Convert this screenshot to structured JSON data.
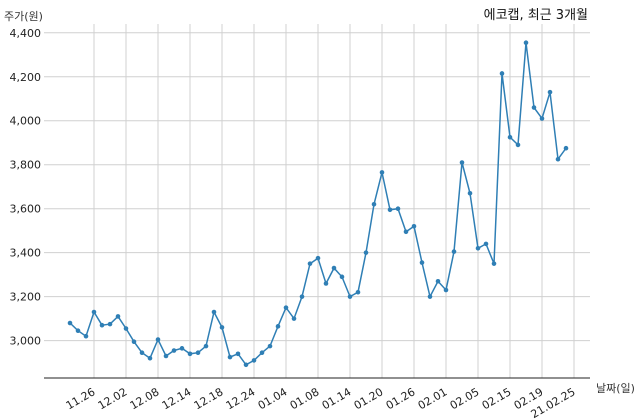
{
  "chart_data": {
    "type": "line",
    "title": "에코캡, 최근 3개월",
    "xlabel": "날짜(일)",
    "ylabel": "주가(원)",
    "ylim": [
      2830,
      4440
    ],
    "yticks": [
      3000,
      3200,
      3400,
      3600,
      3800,
      4000,
      4200,
      4400
    ],
    "ytick_labels": [
      "3,000",
      "3,200",
      "3,400",
      "3,600",
      "3,800",
      "4,000",
      "4,200",
      "4,400"
    ],
    "xtick_labels": [
      "11.26",
      "12.02",
      "12.08",
      "12.14",
      "12.18",
      "12.24",
      "01.04",
      "01.08",
      "01.14",
      "01.20",
      "01.26",
      "02.01",
      "02.05",
      "02.15",
      "02.19",
      "21.02.25"
    ],
    "xtick_index": [
      3,
      7,
      11,
      15,
      19,
      23,
      27,
      31,
      35,
      39,
      43,
      47,
      51,
      55,
      59,
      63
    ],
    "grid": true,
    "series": [
      {
        "values": [
          3080,
          3045,
          3020,
          3130,
          3070,
          3075,
          3110,
          3055,
          2995,
          2945,
          2920,
          3005,
          2930,
          2955,
          2965,
          2940,
          2945,
          2975,
          3130,
          3060,
          2925,
          2940,
          2890,
          2910,
          2945,
          2975,
          3065,
          3150,
          3100,
          3200,
          3350,
          3375,
          3260,
          3330,
          3290,
          3200,
          3220,
          3400,
          3620,
          3765,
          3595,
          3600,
          3495,
          3520,
          3355,
          3200,
          3270,
          3230,
          3405,
          3810,
          3670,
          3420,
          3440,
          3350,
          4215,
          3925,
          3890,
          4355,
          4060,
          4010,
          4130,
          3825,
          3875
        ]
      }
    ]
  }
}
